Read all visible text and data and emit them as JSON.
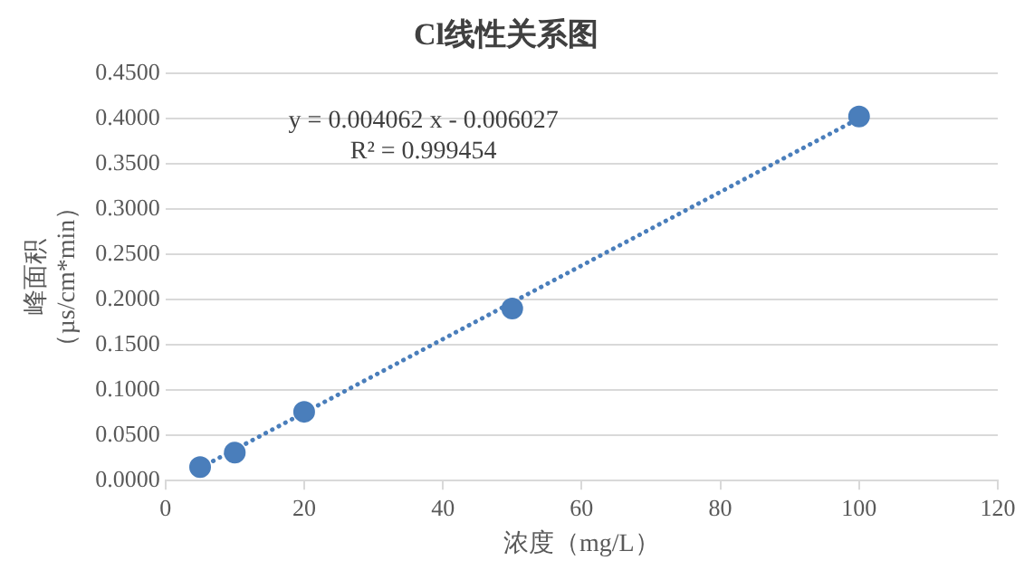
{
  "chart_data": {
    "type": "scatter",
    "title": "Cl线性关系图",
    "xlabel": "浓度（mg/L）",
    "ylabel": "峰面积（µs/cm*min）",
    "annotations": [
      "y = 0.004062 x - 0.006027",
      "R² = 0.999454"
    ],
    "x": [
      5,
      10,
      20,
      50,
      100
    ],
    "series": [
      {
        "color": "#4a7ebb",
        "values": [
          0.015,
          0.031,
          0.076,
          0.19,
          0.402
        ],
        "marker": "circle"
      },
      {
        "type": "line",
        "color": "#4a7ebb",
        "x": [
          5,
          100
        ],
        "values": [
          0.014,
          0.4
        ],
        "line_style": "dotted",
        "marker": "none"
      }
    ],
    "xlim": [
      0,
      120
    ],
    "xticks": [
      0,
      20,
      40,
      60,
      80,
      100,
      120
    ],
    "ylim": [
      0,
      0.45
    ],
    "yticks": [
      {
        "value": 0,
        "label": "0.0000"
      },
      {
        "value": 0.05,
        "label": "0.0500"
      },
      {
        "value": 0.1,
        "label": "0.1000"
      },
      {
        "value": 0.15,
        "label": "0.1500"
      },
      {
        "value": 0.2,
        "label": "0.2000"
      },
      {
        "value": 0.25,
        "label": "0.2500"
      },
      {
        "value": 0.3,
        "label": "0.3000"
      },
      {
        "value": 0.35,
        "label": "0.3500"
      },
      {
        "value": 0.4,
        "label": "0.4000"
      },
      {
        "value": 0.45,
        "label": "0.4500"
      }
    ],
    "grid": "y",
    "legend": false
  }
}
